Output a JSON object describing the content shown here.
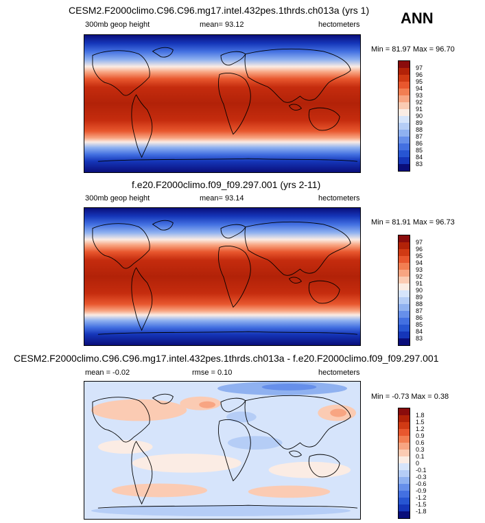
{
  "season": "ANN",
  "panels": [
    {
      "title": "CESM2.F2000climo.C96.C96.mg17.intel.432pes.1thrds.ch013a (yrs 1)",
      "left": "300mb geop height",
      "center": "mean=  93.12",
      "right": "hectometers",
      "minmax": "Min =  81.97 Max =  96.70",
      "colorbar": {
        "labels": [
          "97",
          "96",
          "95",
          "94",
          "93",
          "92",
          "91",
          "90",
          "89",
          "88",
          "87",
          "86",
          "85",
          "84",
          "83"
        ],
        "colors": [
          "#8a0c0c",
          "#b22208",
          "#d03a14",
          "#e8572e",
          "#f27e52",
          "#f8a582",
          "#fbcbb3",
          "#fbece4",
          "#d6e4fb",
          "#b5cdf6",
          "#8fb1f0",
          "#668fea",
          "#4370e1",
          "#2755d2",
          "#1536b9",
          "#0a0e7a"
        ]
      }
    },
    {
      "title": "f.e20.F2000climo.f09_f09.297.001 (yrs 2-11)",
      "left": "300mb geop height",
      "center": "mean=  93.14",
      "right": "hectometers",
      "minmax": "Min =  81.91 Max =  96.73",
      "colorbar": {
        "labels": [
          "97",
          "96",
          "95",
          "94",
          "93",
          "92",
          "91",
          "90",
          "89",
          "88",
          "87",
          "86",
          "85",
          "84",
          "83"
        ],
        "colors": [
          "#8a0c0c",
          "#b22208",
          "#d03a14",
          "#e8572e",
          "#f27e52",
          "#f8a582",
          "#fbcbb3",
          "#fbece4",
          "#d6e4fb",
          "#b5cdf6",
          "#8fb1f0",
          "#668fea",
          "#4370e1",
          "#2755d2",
          "#1536b9",
          "#0a0e7a"
        ]
      }
    },
    {
      "title": "CESM2.F2000climo.C96.C96.mg17.intel.432pes.1thrds.ch013a - f.e20.F2000climo.f09_f09.297.001",
      "left": "mean =  -0.02",
      "center": "rmse =  0.10",
      "right": "hectometers",
      "minmax": "Min =  -0.73 Max =  0.38",
      "colorbar": {
        "labels": [
          "1.8",
          "1.5",
          "1.2",
          "0.9",
          "0.6",
          "0.3",
          "0.1",
          "0",
          "-0.1",
          "-0.3",
          "-0.6",
          "-0.9",
          "-1.2",
          "-1.5",
          "-1.8"
        ],
        "colors": [
          "#8a0c0c",
          "#b22208",
          "#d03a14",
          "#e8572e",
          "#f27e52",
          "#f8a582",
          "#fbcbb3",
          "#fbece4",
          "#d6e4fb",
          "#b5cdf6",
          "#8fb1f0",
          "#668fea",
          "#4370e1",
          "#2755d2",
          "#1536b9",
          "#0a0e7a"
        ]
      }
    }
  ]
}
